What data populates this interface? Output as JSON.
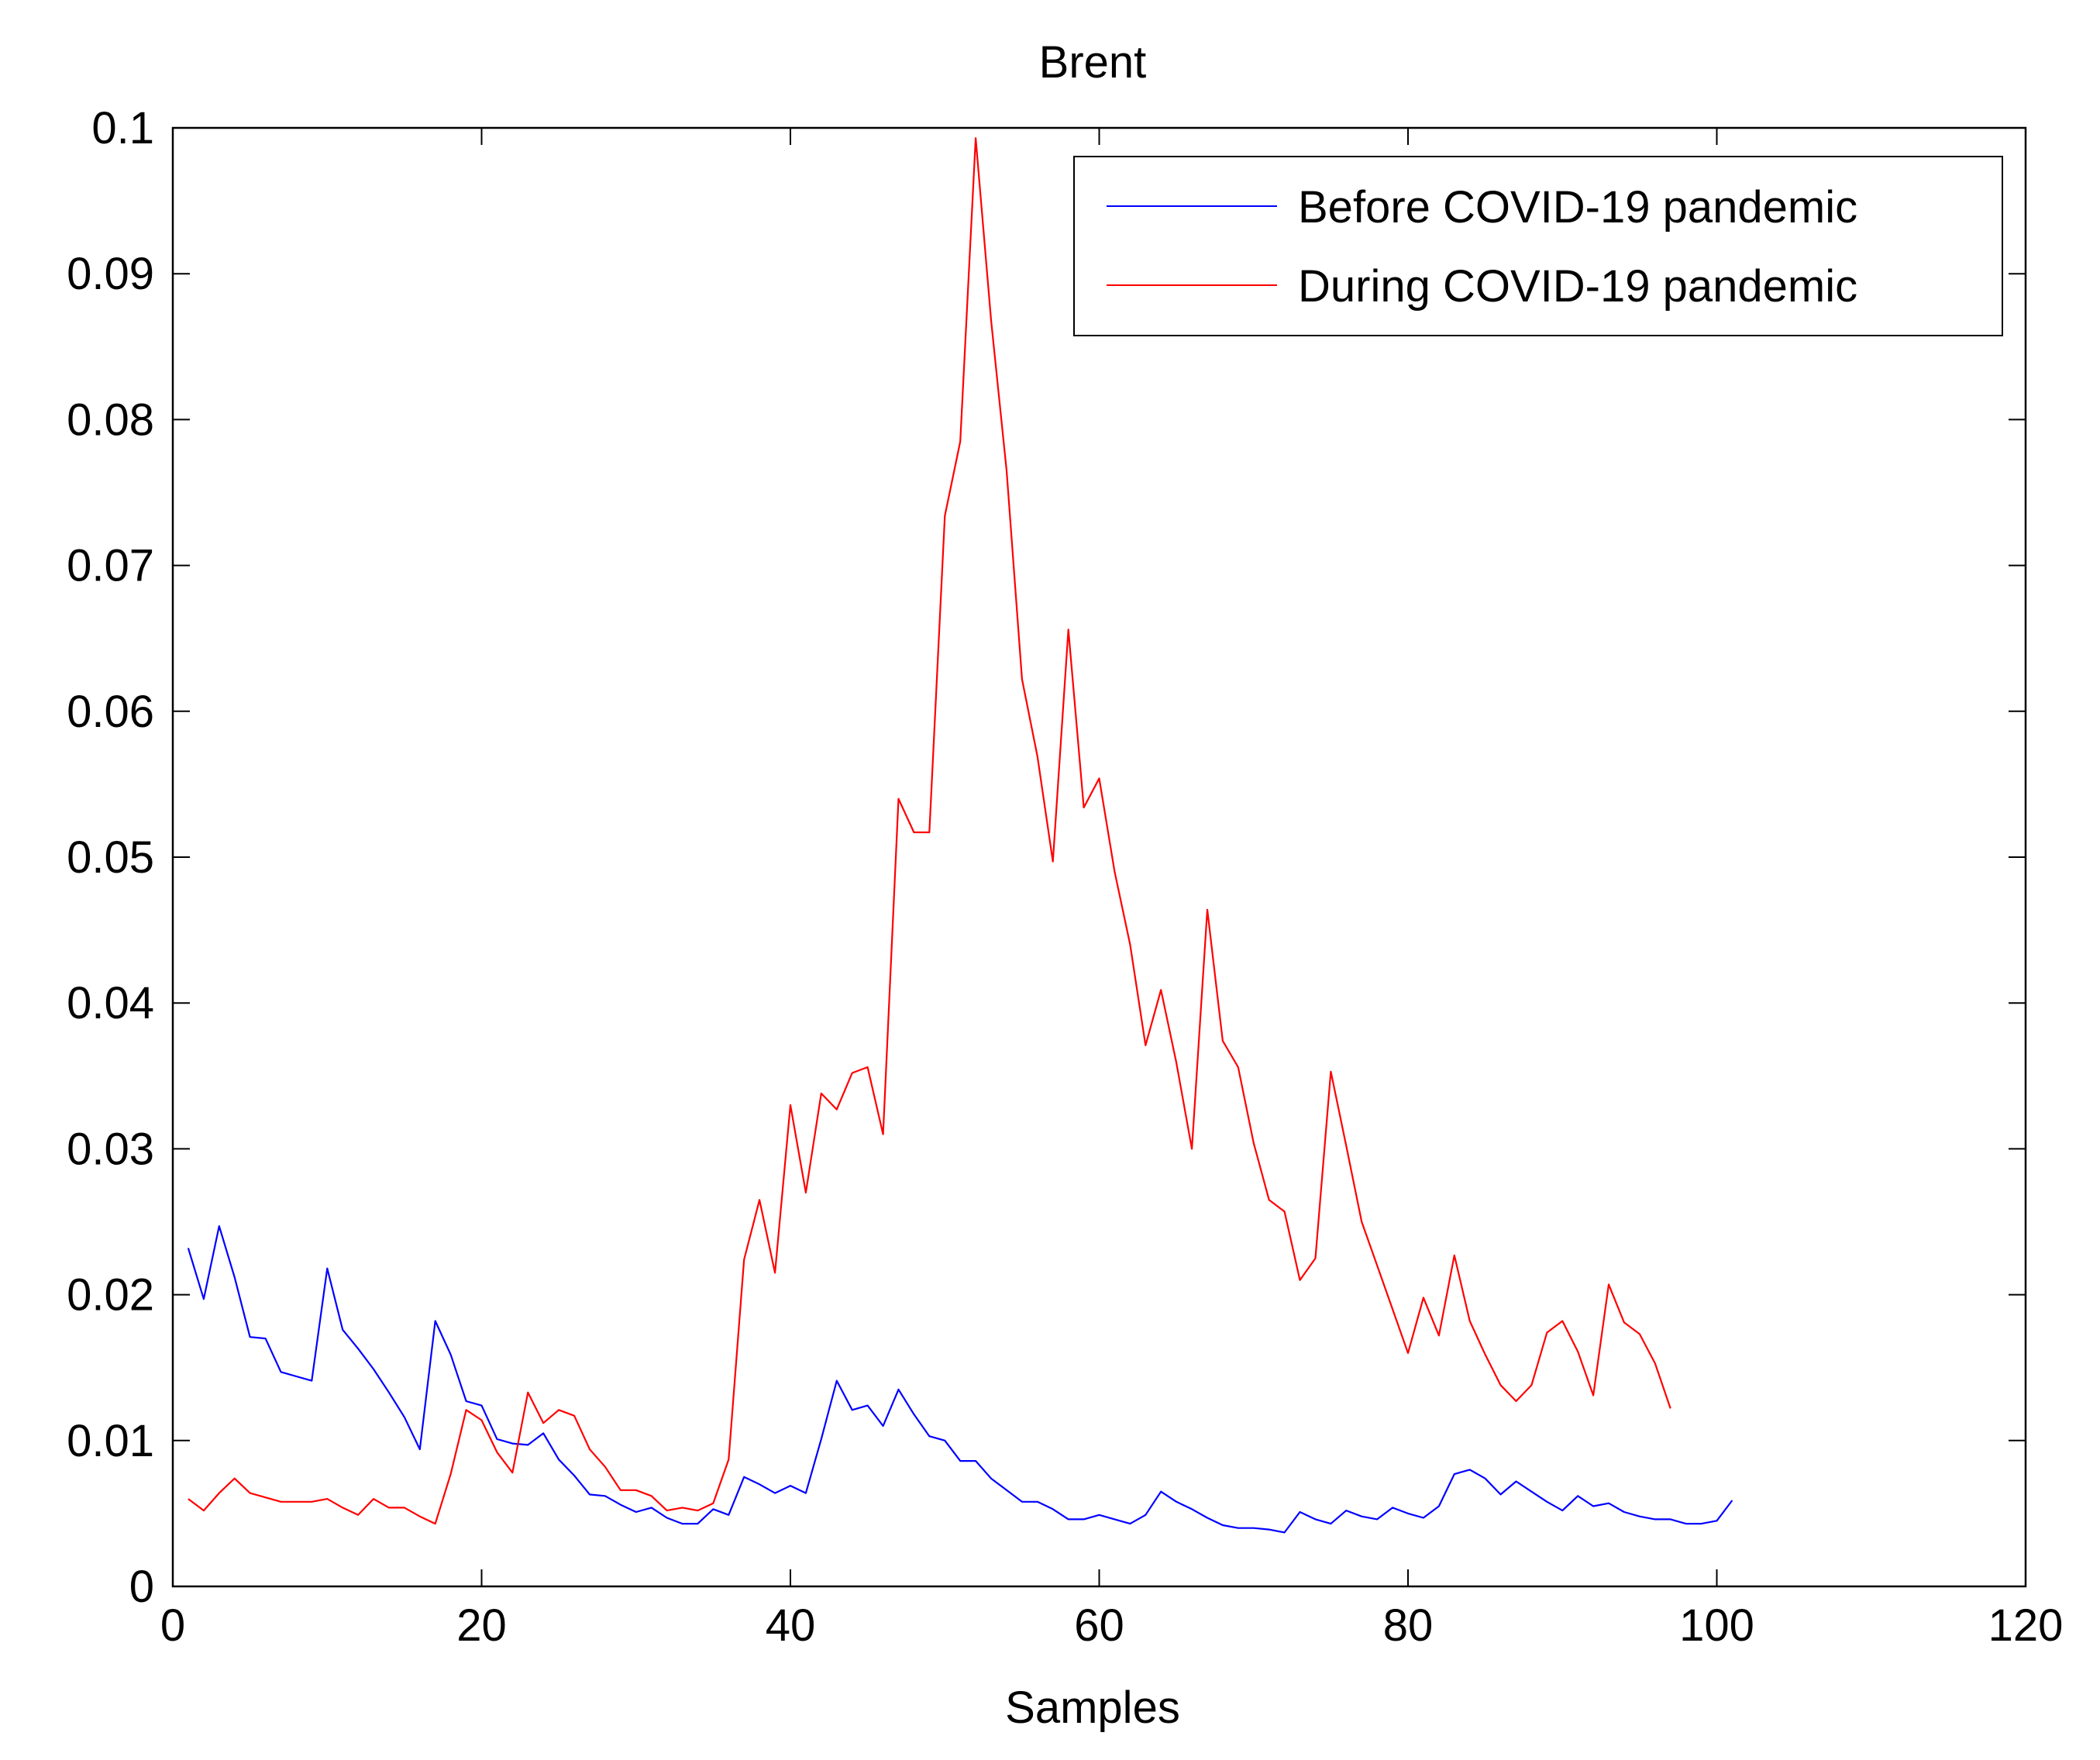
{
  "chart_data": {
    "type": "line",
    "title": "Brent",
    "xlabel": "Samples",
    "ylabel": "",
    "xlim": [
      0,
      120
    ],
    "ylim": [
      0,
      0.1
    ],
    "xticks": [
      0,
      20,
      40,
      60,
      80,
      100,
      120
    ],
    "yticks": [
      0,
      0.01,
      0.02,
      0.03,
      0.04,
      0.05,
      0.06,
      0.07,
      0.08,
      0.09,
      0.1
    ],
    "xtick_labels": [
      "0",
      "20",
      "40",
      "60",
      "80",
      "100",
      "120"
    ],
    "ytick_labels": [
      "0",
      "0.01",
      "0.02",
      "0.03",
      "0.04",
      "0.05",
      "0.06",
      "0.07",
      "0.08",
      "0.09",
      "0.1"
    ],
    "grid": false,
    "legend_position": "top-right",
    "series": [
      {
        "name": "Before COVID-19 pandemic",
        "color": "#0000ff",
        "x_start": 1,
        "values": [
          0.0232,
          0.0197,
          0.0247,
          0.0212,
          0.0171,
          0.017,
          0.0147,
          0.0144,
          0.0141,
          0.0218,
          0.0176,
          0.0163,
          0.0149,
          0.0133,
          0.0116,
          0.0094,
          0.0182,
          0.0159,
          0.0127,
          0.0124,
          0.0101,
          0.0098,
          0.0097,
          0.0105,
          0.0087,
          0.0076,
          0.0063,
          0.0062,
          0.0056,
          0.0051,
          0.0054,
          0.0047,
          0.0043,
          0.0043,
          0.0053,
          0.0049,
          0.0075,
          0.007,
          0.0064,
          0.0069,
          0.0064,
          0.0101,
          0.0141,
          0.0121,
          0.0124,
          0.011,
          0.0135,
          0.0118,
          0.0103,
          0.01,
          0.0086,
          0.0086,
          0.0074,
          0.0066,
          0.0058,
          0.0058,
          0.0053,
          0.0046,
          0.0046,
          0.0049,
          0.0046,
          0.0043,
          0.0049,
          0.0065,
          0.0058,
          0.0053,
          0.0047,
          0.0042,
          0.004,
          0.004,
          0.0039,
          0.0037,
          0.0051,
          0.0046,
          0.0043,
          0.0052,
          0.0048,
          0.0046,
          0.0054,
          0.005,
          0.0047,
          0.0055,
          0.0077,
          0.008,
          0.0074,
          0.0063,
          0.0072,
          0.0065,
          0.0058,
          0.0052,
          0.0062,
          0.0055,
          0.0057,
          0.0051,
          0.0048,
          0.0046,
          0.0046,
          0.0043,
          0.0043,
          0.0045,
          0.0059
        ]
      },
      {
        "name": "During COVID-19 pandemic",
        "color": "#ff0000",
        "x_start": 1,
        "values": [
          0.006,
          0.0052,
          0.0064,
          0.0074,
          0.0064,
          0.0061,
          0.0058,
          0.0058,
          0.0058,
          0.006,
          0.0054,
          0.0049,
          0.006,
          0.0054,
          0.0054,
          0.0048,
          0.0043,
          0.0077,
          0.0121,
          0.0114,
          0.0092,
          0.0078,
          0.0133,
          0.0112,
          0.0121,
          0.0117,
          0.0094,
          0.0082,
          0.0066,
          0.0066,
          0.0062,
          0.0052,
          0.0054,
          0.0052,
          0.0057,
          0.0087,
          0.0224,
          0.0265,
          0.0215,
          0.033,
          0.027,
          0.0338,
          0.0327,
          0.0352,
          0.0356,
          0.031,
          0.054,
          0.0517,
          0.0517,
          0.0734,
          0.0785,
          0.0993,
          0.0868,
          0.0765,
          0.0622,
          0.0569,
          0.0497,
          0.0656,
          0.0534,
          0.0554,
          0.049,
          0.044,
          0.0371,
          0.0409,
          0.0359,
          0.03,
          0.0464,
          0.0374,
          0.0356,
          0.0304,
          0.0265,
          0.0257,
          0.021,
          0.0225,
          0.0353,
          0.0302,
          0.025,
          0.022,
          0.019,
          0.016,
          0.0198,
          0.0172,
          0.0227,
          0.0182,
          0.0159,
          0.0138,
          0.0127,
          0.0138,
          0.0174,
          0.0182,
          0.0161,
          0.0131,
          0.0207,
          0.0181,
          0.0173,
          0.0153,
          0.0122
        ]
      }
    ]
  }
}
